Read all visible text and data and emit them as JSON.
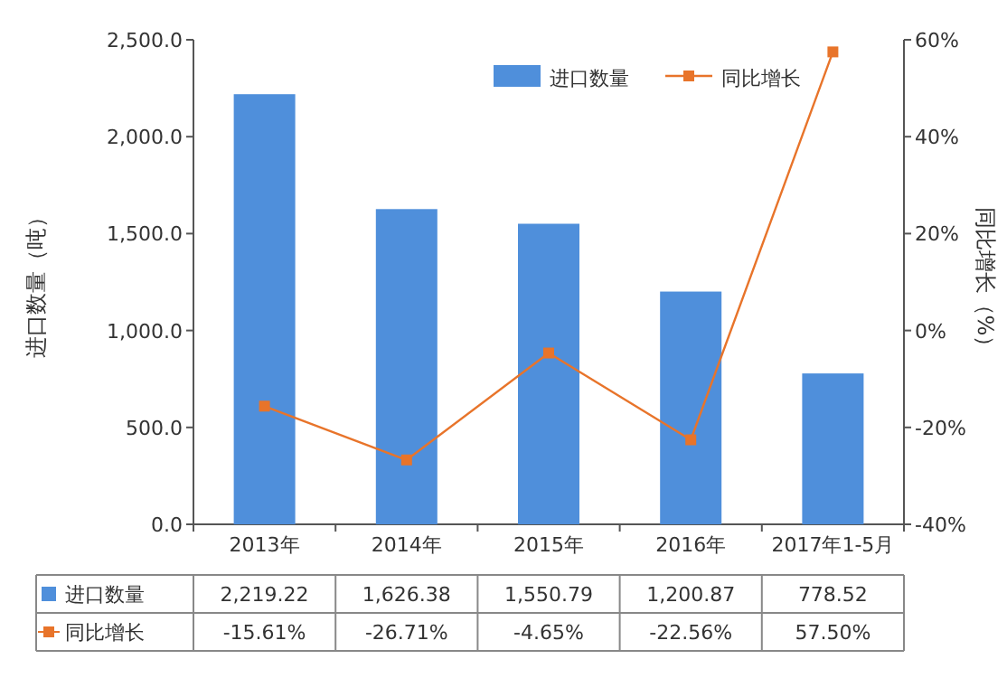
{
  "chart_data": {
    "type": "bar",
    "categories": [
      "2013年",
      "2014年",
      "2015年",
      "2016年",
      "2017年1-5月"
    ],
    "ylabel": "进口数量（吨）",
    "y2label": "同比增长（%）",
    "ylim": [
      0,
      2500
    ],
    "yticks": [
      {
        "value": 0,
        "label": "0.0"
      },
      {
        "value": 500,
        "label": "500.0"
      },
      {
        "value": 1000,
        "label": "1,000.0"
      },
      {
        "value": 1500,
        "label": "1,500.0"
      },
      {
        "value": 2000,
        "label": "2,000.0"
      },
      {
        "value": 2500,
        "label": "2,500.0"
      }
    ],
    "y2lim": [
      -40,
      60
    ],
    "y2ticks": [
      {
        "value": -40,
        "label": "-40%"
      },
      {
        "value": -20,
        "label": "-20%"
      },
      {
        "value": 0,
        "label": "0%"
      },
      {
        "value": 20,
        "label": "20%"
      },
      {
        "value": 40,
        "label": "40%"
      },
      {
        "value": 60,
        "label": "60%"
      }
    ],
    "series": [
      {
        "name": "进口数量",
        "color": "#4f8fdb",
        "values": [
          2219.22,
          1626.38,
          1550.79,
          1200.87,
          778.52
        ],
        "value_labels": [
          "2,219.22",
          "1,626.38",
          "1,550.79",
          "1,200.87",
          "778.52"
        ]
      },
      {
        "name": "同比增长",
        "type": "line",
        "axis": "y2",
        "color": "#e8742a",
        "marker": "square",
        "values": [
          -15.61,
          -26.71,
          -4.65,
          -22.56,
          57.5
        ],
        "value_labels": [
          "-15.61%",
          "-26.71%",
          "-4.65%",
          "-22.56%",
          "57.50%"
        ]
      }
    ],
    "legend": "top right",
    "grid": false
  }
}
